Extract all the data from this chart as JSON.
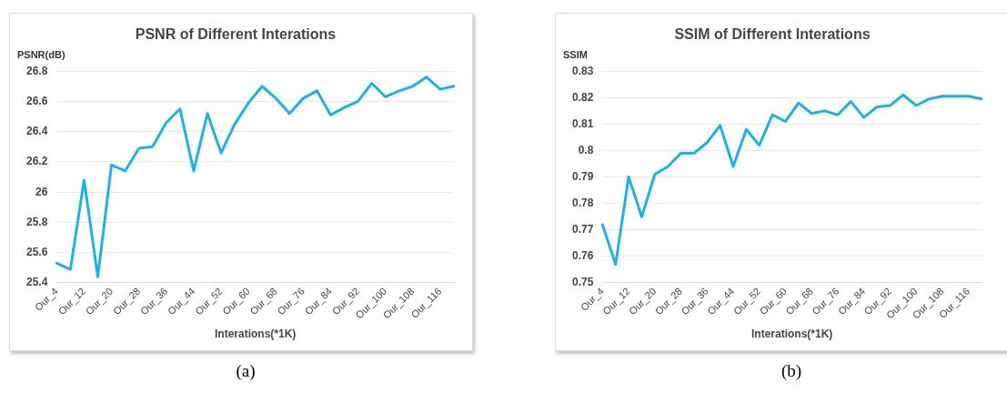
{
  "chart_data": [
    {
      "type": "line",
      "title": "PSNR of Different Interations",
      "xlabel": "Interations(*1K)",
      "ylabel": "PSNR(dB)",
      "categories": [
        "Our_4",
        null,
        "Our_12",
        null,
        "Our_20",
        null,
        "Our_28",
        null,
        "Our_36",
        null,
        "Our_44",
        null,
        "Our_52",
        null,
        "Our_60",
        null,
        "Our_68",
        null,
        "Our_76",
        null,
        "Our_84",
        null,
        "Our_92",
        null,
        "Our_100",
        null,
        "Our_108",
        null,
        "Our_116",
        null
      ],
      "series": [
        {
          "color": "#1fb0e8",
          "values": [
            25.53,
            25.49,
            26.08,
            25.44,
            26.18,
            26.14,
            26.29,
            26.3,
            26.46,
            26.55,
            26.14,
            26.52,
            26.26,
            26.45,
            26.59,
            26.7,
            26.62,
            26.52,
            26.62,
            26.67,
            26.51,
            26.56,
            26.6,
            26.72,
            26.63,
            26.67,
            26.7,
            26.76,
            26.68,
            26.7
          ]
        }
      ],
      "ylim": [
        25.4,
        26.8
      ],
      "yticks": [
        25.4,
        25.6,
        25.8,
        26,
        26.2,
        26.4,
        26.6,
        26.8
      ],
      "grid": "y",
      "legend": false,
      "marker": "none",
      "line_style": "solid",
      "annotations": [
        "(a)"
      ]
    },
    {
      "type": "line",
      "title": "SSIM of Different Interations",
      "xlabel": "Interations(*1K)",
      "ylabel": "SSIM",
      "categories": [
        "Our_4",
        null,
        "Our_12",
        null,
        "Our_20",
        null,
        "Our_28",
        null,
        "Our_36",
        null,
        "Our_44",
        null,
        "Our_52",
        null,
        "Our_60",
        null,
        "Our_68",
        null,
        "Our_76",
        null,
        "Our_84",
        null,
        "Our_92",
        null,
        "Our_100",
        null,
        "Our_108",
        null,
        "Our_116",
        null
      ],
      "series": [
        {
          "color": "#1fb0e8",
          "values": [
            0.772,
            0.757,
            0.79,
            0.775,
            0.791,
            0.794,
            0.799,
            0.799,
            0.803,
            0.8095,
            0.794,
            0.808,
            0.802,
            0.8135,
            0.811,
            0.818,
            0.814,
            0.815,
            0.8135,
            0.8185,
            0.8125,
            0.8165,
            0.817,
            0.821,
            0.817,
            0.8195,
            0.8205,
            0.8205,
            0.8205,
            0.8195
          ]
        }
      ],
      "ylim": [
        0.75,
        0.83
      ],
      "yticks": [
        0.75,
        0.76,
        0.77,
        0.78,
        0.79,
        0.8,
        0.81,
        0.82,
        0.83
      ],
      "grid": "y",
      "legend": false,
      "marker": "none",
      "line_style": "solid",
      "annotations": [
        "(b)"
      ]
    }
  ]
}
